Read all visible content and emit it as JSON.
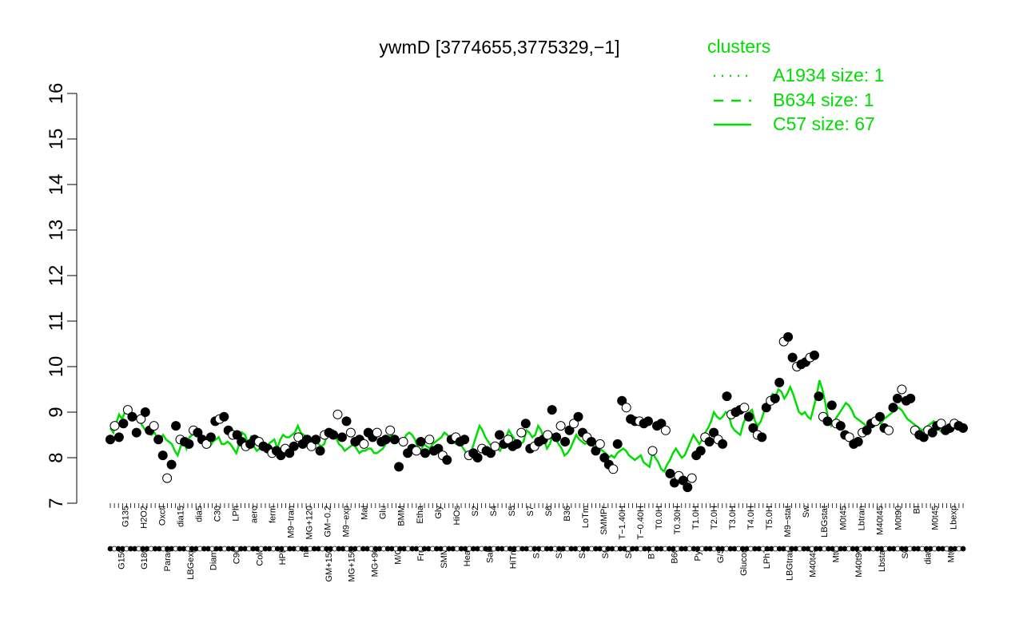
{
  "chart_data": {
    "type": "line",
    "title": "ywmD [3774655,3775329,−1]",
    "xlabel": "",
    "ylabel": "",
    "ylim": [
      7,
      16
    ],
    "yticks": [
      7,
      8,
      9,
      10,
      11,
      12,
      13,
      14,
      15,
      16
    ],
    "legend": {
      "title": "clusters",
      "position": "top-right",
      "color": "#00dd00",
      "entries": [
        {
          "label": "A1934 size: 1",
          "style": "dotted"
        },
        {
          "label": "B634 size: 1",
          "style": "dashed"
        },
        {
          "label": "C57 size: 67",
          "style": "solid"
        }
      ]
    },
    "tick_labels_top": [
      "G135",
      "H2O2",
      "Oxctl",
      "dia15",
      "dia5",
      "C30",
      "LPh",
      "aero",
      "ferm",
      "M9−tran",
      "MG+120",
      "GM−0.2",
      "M9−exp",
      "Mal",
      "Glu",
      "BMM",
      "Etha",
      "Gly",
      "HiOs",
      "S2",
      "S4",
      "S5",
      "S7",
      "S6",
      "B36",
      "LoTm",
      "SMMPr",
      "T−1.40H",
      "T−0.40H",
      "T0.0H",
      "T0.30H",
      "T1.0H",
      "T2.0H",
      "T3.0H",
      "T4.0H",
      "T5.0H",
      "M9−stat",
      "Sw",
      "LBGstat",
      "M0t45",
      "Lbtran",
      "M40t45",
      "M0t90",
      "BI",
      "M0t45",
      "Lbexp"
    ],
    "tick_labels_bottom": [
      "G150",
      "G180",
      "Paraq",
      "LBGexp",
      "Diami",
      "C90",
      "Cold",
      "HPh",
      "nit",
      "GM+150",
      "MG+150",
      "MG+90",
      "M/G",
      "Fru",
      "SMM",
      "Heat",
      "Salt",
      "HiTm",
      "S1",
      "S3",
      "S3",
      "S6",
      "S8",
      "BT",
      "B60",
      "Pyr",
      "G/S",
      "Glucon",
      "LPhT",
      "LBGtran",
      "M40t45",
      "Mt0",
      "M40t90",
      "Lbstat",
      "S0",
      "dia0",
      "Mt0"
    ],
    "series": [
      {
        "values": [
          8.65,
          8.55,
          8.75,
          8.95,
          8.85,
          9.0,
          9.0,
          8.85,
          8.9,
          8.9,
          8.8,
          8.7,
          8.6,
          8.55,
          8.5,
          8.55,
          8.45,
          8.4,
          8.5,
          8.4,
          8.35,
          8.3,
          8.15,
          8.05,
          8.25,
          8.35,
          8.2,
          8.45,
          8.5,
          8.55,
          8.6,
          8.5,
          8.4,
          8.3,
          8.25,
          8.35,
          8.4,
          8.45,
          8.3,
          8.3,
          8.35,
          8.3,
          8.2,
          8.1,
          8.3,
          8.55,
          8.5,
          8.3,
          8.45,
          8.25,
          8.15,
          8.2,
          8.3,
          8.2,
          8.3,
          8.35,
          8.4,
          8.2,
          8.4,
          8.5,
          8.45,
          8.45,
          8.5,
          8.55,
          8.7,
          8.55,
          8.5,
          8.45,
          8.4,
          8.35,
          8.35,
          8.3,
          8.25,
          8.3,
          8.5,
          8.55,
          8.6,
          8.45,
          8.3,
          8.25,
          8.15,
          8.2,
          8.25,
          8.3,
          8.2,
          8.1,
          8.15,
          8.15,
          8.2,
          8.2,
          8.1,
          8.1,
          8.15,
          8.2,
          8.3,
          8.45,
          8.5,
          8.45,
          8.4,
          8.4,
          8.35,
          8.5,
          8.55,
          8.5,
          8.4,
          8.2,
          8.15,
          8.3,
          8.25,
          8.2,
          8.3,
          8.35,
          8.4,
          8.45,
          8.55,
          8.5,
          8.4,
          8.35,
          8.3,
          8.35,
          8.25,
          8.15,
          8.05,
          8.1,
          8.3,
          8.5,
          8.7,
          8.6,
          8.45,
          8.35,
          8.25,
          8.2,
          8.2,
          8.15,
          8.3,
          8.45,
          8.6,
          8.5,
          8.4,
          8.35,
          8.3,
          8.35,
          8.6,
          8.55,
          8.45,
          8.5,
          8.7,
          8.6,
          8.4,
          8.2,
          8.3,
          8.5,
          8.4,
          8.3,
          8.2,
          8.05,
          8.1,
          8.2,
          8.35,
          8.5,
          8.4,
          8.35,
          8.3,
          8.35,
          8.3,
          8.25,
          8.2,
          8.2,
          8.15,
          8.1,
          8.0,
          8.05,
          8.0,
          8.1,
          8.15,
          8.2,
          8.15,
          8.05,
          8.0,
          7.95,
          8.0,
          8.05,
          7.9,
          7.85,
          7.8,
          8.1,
          8.0,
          7.9,
          7.75,
          7.7,
          7.85,
          7.95,
          8.1,
          8.2,
          8.1,
          8.0,
          8.05,
          8.2,
          8.35,
          8.5,
          8.4,
          8.3,
          8.4,
          8.55,
          8.65,
          8.8,
          9.0,
          8.9,
          8.85,
          8.9,
          9.0,
          8.95,
          8.7,
          8.6,
          8.55,
          8.5,
          8.75,
          8.9,
          9.0,
          9.05,
          8.8,
          8.7,
          8.8,
          9.0,
          9.1,
          9.3,
          9.4,
          9.35,
          9.5,
          9.45,
          9.3,
          9.4,
          9.55,
          9.4,
          9.2,
          9.0,
          8.95,
          9.0,
          8.9,
          8.85,
          9.1,
          9.35,
          9.7,
          9.5,
          9.2,
          8.85,
          8.7,
          8.8,
          8.9,
          9.0,
          9.1,
          9.2,
          9.15,
          9.05,
          8.9,
          8.85,
          8.8,
          8.75,
          8.7,
          8.75,
          8.8,
          8.85,
          8.8,
          8.75,
          8.85,
          8.9,
          8.95,
          9.0,
          9.05,
          9.1,
          9.05,
          8.95,
          8.85,
          8.8,
          8.75,
          8.7,
          8.65,
          8.6,
          8.65,
          8.7,
          8.75,
          8.8,
          8.7,
          8.6,
          8.55,
          8.6,
          8.65,
          8.6,
          8.65,
          8.7,
          8.75,
          8.7
        ]
      },
      {
        "values": [
          8.4,
          8.7,
          8.45,
          8.75,
          9.05,
          8.9,
          8.55,
          8.85,
          9.0,
          8.6,
          8.7,
          8.4,
          8.05,
          7.55,
          7.85,
          8.7,
          8.4,
          8.35,
          8.3,
          8.6,
          8.55,
          8.4,
          8.3,
          8.45,
          8.8,
          8.85,
          8.9,
          8.6,
          8.5,
          8.5,
          8.35,
          8.25,
          8.3,
          8.4,
          8.35,
          8.25,
          8.2,
          8.1,
          8.15,
          8.05,
          8.2,
          8.1,
          8.25,
          8.45,
          8.3,
          8.4,
          8.25,
          8.4,
          8.15,
          8.5,
          8.55,
          8.5,
          8.95,
          8.45,
          8.8,
          8.55,
          8.35,
          8.4,
          8.3,
          8.55,
          8.45,
          8.55,
          8.35,
          8.4,
          8.6,
          8.4,
          7.8,
          8.35,
          8.1,
          8.2,
          8.15,
          8.35,
          8.1,
          8.4,
          8.15,
          8.2,
          8.05,
          7.95,
          8.4,
          8.45,
          8.35,
          8.4,
          8.05,
          8.1,
          8.0,
          8.2,
          8.15,
          8.1,
          8.25,
          8.5,
          8.3,
          8.4,
          8.25,
          8.3,
          8.55,
          8.75,
          8.2,
          8.25,
          8.35,
          8.4,
          8.5,
          9.05,
          8.45,
          8.7,
          8.35,
          8.6,
          8.75,
          8.9,
          8.55,
          8.45,
          8.35,
          8.15,
          8.3,
          8.0,
          7.85,
          7.75,
          8.3,
          9.25,
          9.1,
          8.85,
          8.8,
          8.8,
          8.75,
          8.8,
          8.15,
          8.7,
          8.75,
          8.6,
          7.65,
          7.45,
          7.6,
          7.5,
          7.35,
          7.55,
          8.05,
          8.15,
          8.45,
          8.35,
          8.55,
          8.4,
          8.3,
          9.35,
          8.95,
          9.0,
          9.05,
          9.1,
          8.9,
          8.65,
          8.5,
          8.45,
          9.1,
          9.25,
          9.3,
          9.65,
          10.55,
          10.65,
          10.2,
          10.0,
          10.05,
          10.1,
          10.2,
          10.25,
          9.35,
          8.9,
          8.8,
          9.15,
          8.75,
          8.7,
          8.5,
          8.45,
          8.3,
          8.35,
          8.55,
          8.6,
          8.75,
          8.8,
          8.9,
          8.65,
          8.6,
          9.1,
          9.3,
          9.5,
          9.25,
          9.3,
          8.6,
          8.5,
          8.45,
          8.6,
          8.55,
          8.7,
          8.75,
          8.6,
          8.65,
          8.75,
          8.7,
          8.65
        ]
      }
    ]
  }
}
